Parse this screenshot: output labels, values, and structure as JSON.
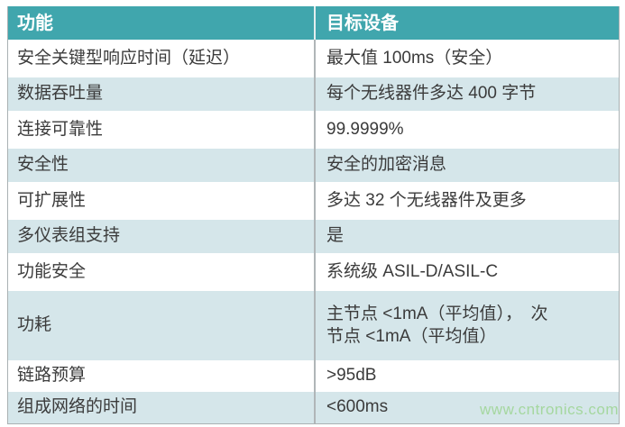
{
  "colors": {
    "header_bg": "#40a6ad",
    "header_text": "#ffffff",
    "alt_row_bg": "#d5e6ea",
    "body_text": "#3b3b3b",
    "divider": "#b0b6b8",
    "watermark_green": "#a5d79f"
  },
  "table": {
    "headers": {
      "feature": "功能",
      "target": "目标设备"
    },
    "rows": [
      {
        "feature": "安全关键型响应时间（延迟）",
        "target": "最大值 100ms（安全）"
      },
      {
        "feature": "数据吞吐量",
        "target": "每个无线器件多达 400 字节"
      },
      {
        "feature": "连接可靠性",
        "target": "99.9999%"
      },
      {
        "feature": "安全性",
        "target": "安全的加密消息"
      },
      {
        "feature": "可扩展性",
        "target": "多达 32 个无线器件及更多"
      },
      {
        "feature": "多仪表组支持",
        "target": "是"
      },
      {
        "feature": "功能安全",
        "target": "系统级 ASIL-D/ASIL-C"
      },
      {
        "feature": "功耗",
        "target": "主节点 <1mA（平均值），　次\n节点 <1mA（平均值）"
      },
      {
        "feature": "链路预算",
        "target": ">95dB"
      },
      {
        "feature": "组成网络的时间",
        "target": "<600ms"
      }
    ]
  },
  "watermark": {
    "text": "www.cntronics.com"
  }
}
